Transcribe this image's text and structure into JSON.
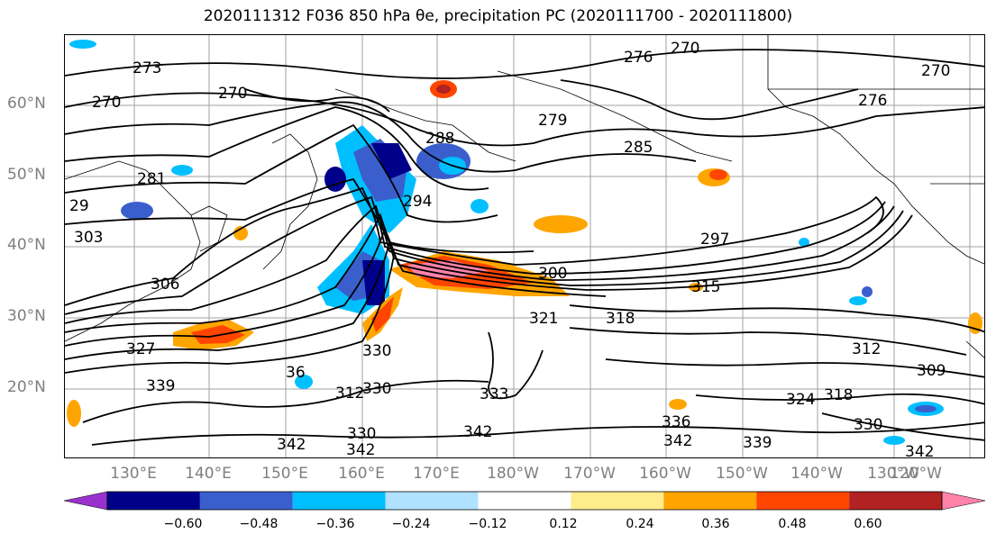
{
  "title": "2020111312 F036 850 hPa θe, precipitation PC (2020111700 - 2020111800)",
  "lat_labels": [
    "60°N",
    "50°N",
    "40°N",
    "30°N",
    "20°N"
  ],
  "lon_labels": [
    "130°E",
    "140°E",
    "150°E",
    "160°E",
    "170°E",
    "180°W",
    "170°W",
    "160°W",
    "150°W",
    "140°W",
    "130°W",
    "120°W"
  ],
  "colorbar": {
    "colors": [
      "#9932cc",
      "#00008b",
      "#3a5fcd",
      "#00bfff",
      "#b0e2ff",
      "#ffffff",
      "#ffec8b",
      "#ffa500",
      "#ff4500",
      "#b22222",
      "#ff82ab"
    ],
    "tick_labels": [
      "−0.60",
      "−0.48",
      "−0.36",
      "−0.24",
      "−0.12",
      "0.12",
      "0.24",
      "0.36",
      "0.48",
      "0.60"
    ]
  },
  "contour_labels": [
    "273",
    "270",
    "276",
    "270",
    "270",
    "270",
    "276",
    "279",
    "285",
    "288",
    "281",
    "294",
    "29",
    "303",
    "297",
    "300",
    "306",
    "315",
    "312",
    "321",
    "318",
    "327",
    "330",
    "330",
    "339",
    "333",
    "342",
    "342",
    "342",
    "336",
    "342",
    "339",
    "330",
    "342",
    "309",
    "312",
    "318",
    "324",
    "36",
    "330"
  ]
}
